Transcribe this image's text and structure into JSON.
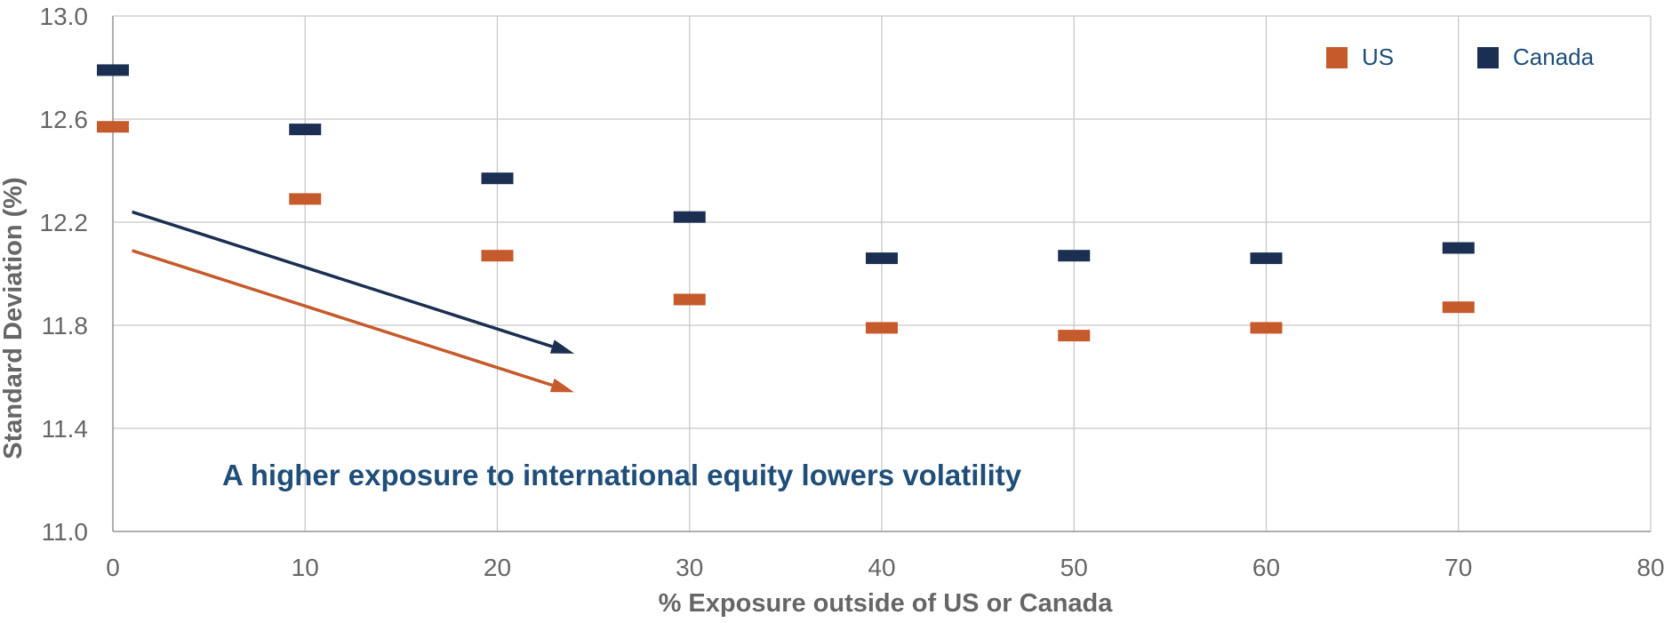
{
  "chart_data": {
    "type": "scatter",
    "title": "",
    "xlabel": "% Exposure outside of US or Canada",
    "ylabel": "Standard Deviation (%)",
    "xlim": [
      0,
      80
    ],
    "ylim": [
      11.0,
      13.0
    ],
    "x_ticks": [
      0,
      10,
      20,
      30,
      40,
      50,
      60,
      70,
      80
    ],
    "y_ticks": [
      "11.0",
      "11.4",
      "11.8",
      "12.2",
      "12.6",
      "13.0"
    ],
    "grid": true,
    "legend_position": "top-right",
    "x": [
      0,
      10,
      20,
      30,
      40,
      50,
      60,
      70
    ],
    "series": [
      {
        "name": "US",
        "color": "#c55a2b",
        "values": [
          12.57,
          12.29,
          12.07,
          11.9,
          11.79,
          11.76,
          11.79,
          11.87
        ]
      },
      {
        "name": "Canada",
        "color": "#1b2f52",
        "values": [
          12.79,
          12.56,
          12.37,
          12.22,
          12.06,
          12.07,
          12.06,
          12.1
        ]
      }
    ],
    "annotation": {
      "text": "A higher exposure to international equity lowers volatility",
      "color": "#1f4e79"
    },
    "arrows": [
      {
        "series": "Canada",
        "color": "#1b2f52",
        "from": [
          1,
          12.24
        ],
        "to": [
          24,
          11.69
        ]
      },
      {
        "series": "US",
        "color": "#c55a2b",
        "from": [
          1,
          12.09
        ],
        "to": [
          24,
          11.54
        ]
      }
    ]
  }
}
